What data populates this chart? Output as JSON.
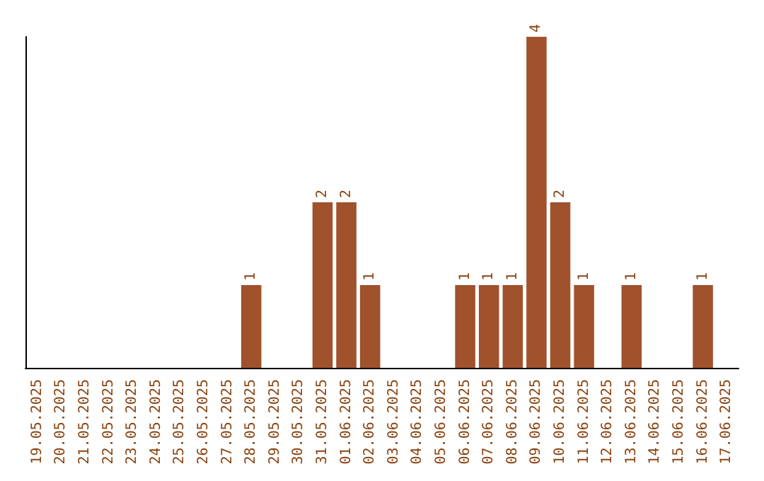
{
  "chart_data": {
    "type": "bar",
    "categories": [
      "19.05.2025",
      "20.05.2025",
      "21.05.2025",
      "22.05.2025",
      "23.05.2025",
      "24.05.2025",
      "25.05.2025",
      "26.05.2025",
      "27.05.2025",
      "28.05.2025",
      "29.05.2025",
      "30.05.2025",
      "31.05.2025",
      "01.06.2025",
      "02.06.2025",
      "03.06.2025",
      "04.06.2025",
      "05.06.2025",
      "06.06.2025",
      "07.06.2025",
      "08.06.2025",
      "09.06.2025",
      "10.06.2025",
      "11.06.2025",
      "12.06.2025",
      "13.06.2025",
      "14.06.2025",
      "15.06.2025",
      "16.06.2025",
      "17.06.2025"
    ],
    "values": [
      0,
      0,
      0,
      0,
      0,
      0,
      0,
      0,
      0,
      1,
      0,
      0,
      2,
      2,
      1,
      0,
      0,
      0,
      1,
      1,
      1,
      4,
      2,
      1,
      0,
      1,
      0,
      0,
      1,
      0
    ],
    "value_labels": [
      null,
      null,
      null,
      null,
      null,
      null,
      null,
      null,
      null,
      "1",
      null,
      null,
      "2",
      "2",
      "1",
      null,
      null,
      null,
      "1",
      "1",
      "1",
      "4",
      "2",
      "1",
      null,
      "1",
      null,
      null,
      "1",
      null
    ],
    "color": "#a0522d",
    "ylim": [
      0,
      4
    ],
    "tick_labels": "x"
  }
}
